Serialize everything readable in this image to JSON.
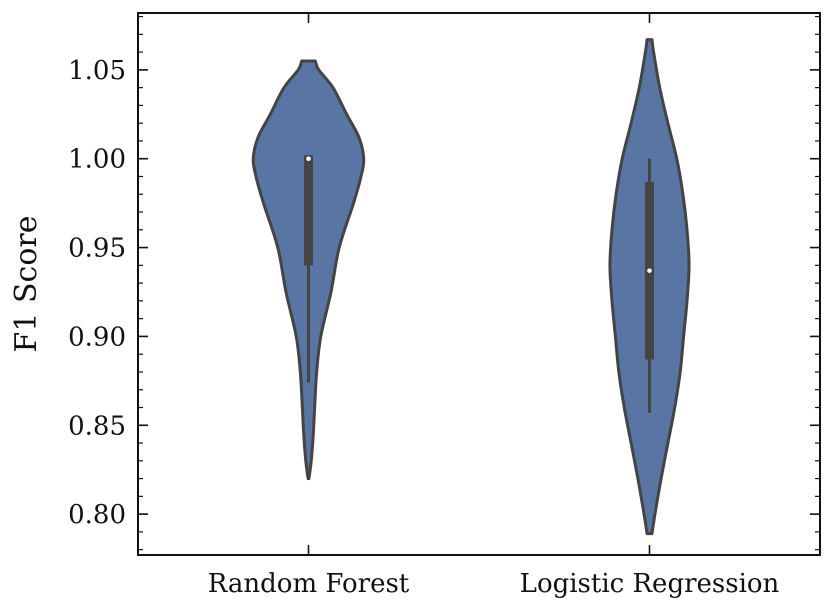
{
  "chart_data": {
    "type": "violin",
    "ylabel": "F1 Score",
    "xlabel": "",
    "title": "",
    "ylim": [
      0.777,
      1.082
    ],
    "yticks": [
      0.8,
      0.85,
      0.9,
      0.95,
      1.0,
      1.05
    ],
    "ytick_labels": [
      "0.80",
      "0.85",
      "0.90",
      "0.95",
      "1.00",
      "1.05"
    ],
    "yminor_step": 0.01,
    "categories": [
      "Random Forest",
      "Logistic Regression"
    ],
    "fill_color": "#5875a4",
    "edge_color": "#444444",
    "median_marker_color": "#ffffff",
    "violins": [
      {
        "category": "Random Forest",
        "y_min": 0.82,
        "y_max": 1.055,
        "profile": [
          [
            0.82,
            0.003
          ],
          [
            0.83,
            0.02
          ],
          [
            0.845,
            0.035
          ],
          [
            0.86,
            0.045
          ],
          [
            0.88,
            0.06
          ],
          [
            0.9,
            0.09
          ],
          [
            0.925,
            0.165
          ],
          [
            0.95,
            0.225
          ],
          [
            0.975,
            0.33
          ],
          [
            0.99,
            0.385
          ],
          [
            1.0,
            0.405
          ],
          [
            1.012,
            0.37
          ],
          [
            1.025,
            0.28
          ],
          [
            1.04,
            0.18
          ],
          [
            1.05,
            0.075
          ],
          [
            1.055,
            0.05
          ]
        ],
        "quartile_low": 0.94,
        "quartile_high": 1.002,
        "whisker_low": 0.874,
        "whisker_high": 1.002,
        "median": 1.0
      },
      {
        "category": "Logistic Regression",
        "y_min": 0.789,
        "y_max": 1.067,
        "profile": [
          [
            0.789,
            0.018
          ],
          [
            0.8,
            0.04
          ],
          [
            0.82,
            0.085
          ],
          [
            0.84,
            0.135
          ],
          [
            0.86,
            0.185
          ],
          [
            0.88,
            0.225
          ],
          [
            0.9,
            0.25
          ],
          [
            0.92,
            0.275
          ],
          [
            0.94,
            0.29
          ],
          [
            0.96,
            0.275
          ],
          [
            0.98,
            0.245
          ],
          [
            1.0,
            0.2
          ],
          [
            1.02,
            0.135
          ],
          [
            1.04,
            0.075
          ],
          [
            1.06,
            0.03
          ],
          [
            1.067,
            0.018
          ]
        ],
        "quartile_low": 0.887,
        "quartile_high": 0.987,
        "whisker_low": 0.857,
        "whisker_high": 1.0,
        "median": 0.937
      }
    ]
  }
}
